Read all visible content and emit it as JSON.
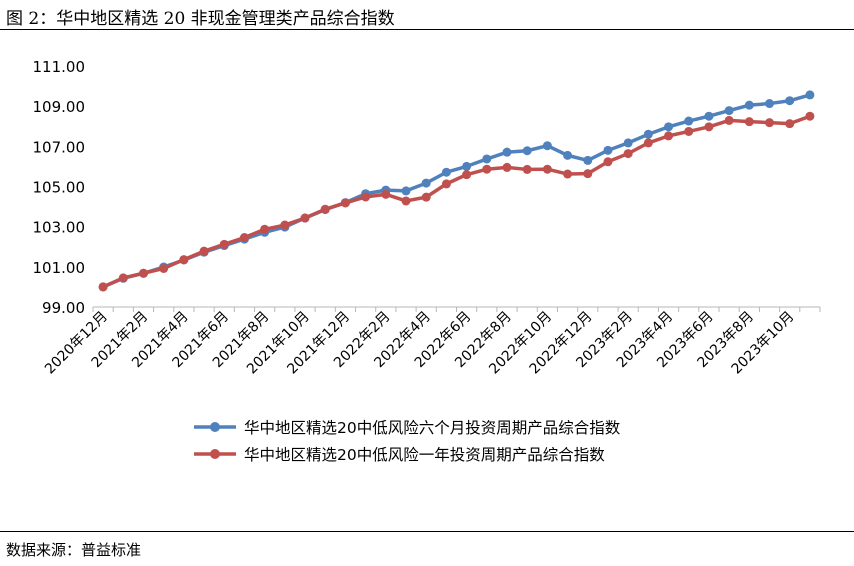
{
  "figure": {
    "title": "图 2：华中地区精选 20 非现金管理类产品综合指数",
    "source": "数据来源：普益标准"
  },
  "chart_data": {
    "type": "line",
    "title": "",
    "xlabel": "",
    "ylabel": "",
    "ylim": [
      99.0,
      111.0
    ],
    "yticks": [
      "99.00",
      "101.00",
      "103.00",
      "105.00",
      "107.00",
      "109.00",
      "111.00"
    ],
    "grid": false,
    "legend_position": "bottom",
    "categories": [
      "2020年12月",
      "2021年1月",
      "2021年2月",
      "2021年3月",
      "2021年4月",
      "2021年5月",
      "2021年6月",
      "2021年7月",
      "2021年8月",
      "2021年9月",
      "2021年10月",
      "2021年11月",
      "2021年12月",
      "2022年1月",
      "2022年2月",
      "2022年3月",
      "2022年4月",
      "2022年5月",
      "2022年6月",
      "2022年7月",
      "2022年8月",
      "2022年9月",
      "2022年10月",
      "2022年11月",
      "2022年12月",
      "2023年1月",
      "2023年2月",
      "2023年3月",
      "2023年4月",
      "2023年5月",
      "2023年6月",
      "2023年7月",
      "2023年8月",
      "2023年9月",
      "2023年10月",
      "2023年11月"
    ],
    "tick_labels": [
      "2020年12月",
      "2021年2月",
      "2021年4月",
      "2021年6月",
      "2021年8月",
      "2021年10月",
      "2021年12月",
      "2022年2月",
      "2022年4月",
      "2022年6月",
      "2022年8月",
      "2022年10月",
      "2022年12月",
      "2023年2月",
      "2023年4月",
      "2023年6月",
      "2023年8月",
      "2023年10月"
    ],
    "series": [
      {
        "name": "华中地区精选20中低风险六个月投资周期产品综合指数",
        "color": "#4f81bd",
        "values": [
          100.0,
          100.43,
          100.68,
          100.99,
          101.34,
          101.73,
          102.06,
          102.38,
          102.72,
          102.98,
          103.43,
          103.85,
          104.2,
          104.64,
          104.82,
          104.78,
          105.17,
          105.71,
          106.0,
          106.37,
          106.71,
          106.78,
          107.03,
          106.55,
          106.3,
          106.8,
          107.17,
          107.6,
          107.97,
          108.26,
          108.5,
          108.78,
          109.05,
          109.13,
          109.27,
          109.56
        ]
      },
      {
        "name": "华中地区精选20中低风险一年投资周期产品综合指数",
        "color": "#c0504d",
        "values": [
          100.0,
          100.45,
          100.68,
          100.92,
          101.36,
          101.78,
          102.12,
          102.46,
          102.87,
          103.08,
          103.43,
          103.87,
          104.18,
          104.48,
          104.61,
          104.28,
          104.47,
          105.13,
          105.59,
          105.86,
          105.95,
          105.85,
          105.86,
          105.62,
          105.64,
          106.23,
          106.64,
          107.17,
          107.52,
          107.74,
          107.97,
          108.29,
          108.23,
          108.18,
          108.13,
          108.5
        ]
      }
    ]
  }
}
